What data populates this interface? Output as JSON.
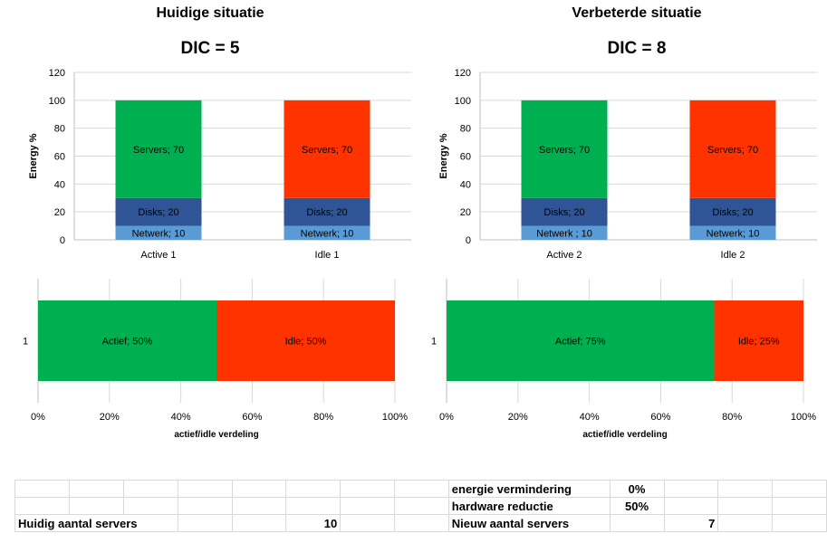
{
  "left_panel": {
    "title": "Huidige situatie",
    "dic": "DIC = 5"
  },
  "right_panel": {
    "title": "Verbeterde situatie",
    "dic": "DIC = 8"
  },
  "chart_data": [
    {
      "type": "bar",
      "stacked": true,
      "categories": [
        "Active 1",
        "Idle 1"
      ],
      "ylabel": "Energy %",
      "ylim": [
        0,
        120
      ],
      "yticks": [
        0,
        20,
        40,
        60,
        80,
        100,
        120
      ],
      "series": [
        {
          "segment_labels": [
            "Netwerk; 10",
            "Netwerk; 10"
          ],
          "values": [
            10,
            10
          ],
          "colors": [
            "#5b9bd5",
            "#5b9bd5"
          ]
        },
        {
          "segment_labels": [
            "Disks; 20",
            "Disks; 20"
          ],
          "values": [
            20,
            20
          ],
          "colors": [
            "#2f5597",
            "#2f5597"
          ]
        },
        {
          "segment_labels": [
            "Servers; 70",
            "Servers; 70"
          ],
          "values": [
            70,
            70
          ],
          "colors": [
            "#00b050",
            "#ff3300"
          ]
        }
      ]
    },
    {
      "type": "bar",
      "stacked": true,
      "categories": [
        "Active 2",
        "Idle 2"
      ],
      "ylabel": "Energy %",
      "ylim": [
        0,
        120
      ],
      "yticks": [
        0,
        20,
        40,
        60,
        80,
        100,
        120
      ],
      "series": [
        {
          "segment_labels": [
            "Netwerk ; 10",
            "Netwerk; 10"
          ],
          "values": [
            10,
            10
          ],
          "colors": [
            "#5b9bd5",
            "#5b9bd5"
          ]
        },
        {
          "segment_labels": [
            "Disks; 20",
            "Disks; 20"
          ],
          "values": [
            20,
            20
          ],
          "colors": [
            "#2f5597",
            "#2f5597"
          ]
        },
        {
          "segment_labels": [
            "Servers; 70",
            "Servers; 70"
          ],
          "values": [
            70,
            70
          ],
          "colors": [
            "#00b050",
            "#ff3300"
          ]
        }
      ]
    },
    {
      "type": "bar",
      "orientation": "horizontal",
      "stacked": true,
      "categories": [
        "1"
      ],
      "xlabel": "actief/idle verdeling",
      "xlim": [
        0,
        100
      ],
      "xticks": [
        "0%",
        "20%",
        "40%",
        "60%",
        "80%",
        "100%"
      ],
      "series": [
        {
          "label": "Actief; 50%",
          "value": 50,
          "color": "#00b050"
        },
        {
          "label": "Idle; 50%",
          "value": 50,
          "color": "#ff3300"
        }
      ]
    },
    {
      "type": "bar",
      "orientation": "horizontal",
      "stacked": true,
      "categories": [
        "1"
      ],
      "xlabel": "actief/idle verdeling",
      "xlim": [
        0,
        100
      ],
      "xticks": [
        "0%",
        "20%",
        "40%",
        "60%",
        "80%",
        "100%"
      ],
      "series": [
        {
          "label": "Actief; 75%",
          "value": 75,
          "color": "#00b050"
        },
        {
          "label": "Idle; 25%",
          "value": 25,
          "color": "#ff3300"
        }
      ]
    }
  ],
  "table": {
    "energie_label": "energie vermindering",
    "energie_value": "0%",
    "hardware_label": "hardware reductie",
    "hardware_value": "50%",
    "huidig_label": "Huidig aantal servers",
    "huidig_value": "10",
    "nieuw_label": "Nieuw aantal servers",
    "nieuw_value": "7"
  }
}
